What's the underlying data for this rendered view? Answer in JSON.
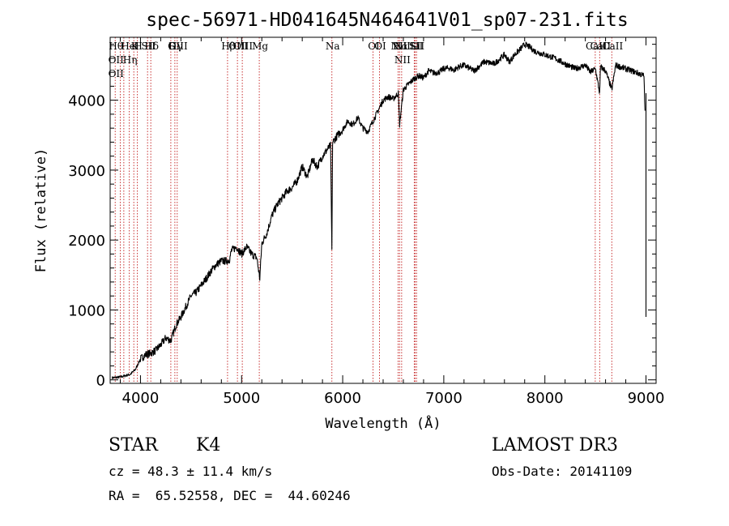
{
  "chart_data": {
    "type": "line",
    "title": "spec-56971-HD041645N464641V01_sp07-231.fits",
    "xlabel": "Wavelength (Å)",
    "ylabel": "Flux (relative)",
    "xlim": [
      3700,
      9100
    ],
    "ylim": [
      -50,
      4900
    ],
    "xticks": [
      4000,
      5000,
      6000,
      7000,
      8000,
      9000
    ],
    "yticks": [
      0,
      1000,
      2000,
      3000,
      4000
    ],
    "colors": {
      "line": "#000000",
      "marker": "#c83232",
      "axes": "#000000"
    },
    "series": [
      {
        "name": "flux",
        "x": [
          3720,
          3800,
          3900,
          3950,
          4000,
          4050,
          4100,
          4150,
          4200,
          4250,
          4300,
          4350,
          4400,
          4450,
          4500,
          4550,
          4600,
          4650,
          4700,
          4750,
          4800,
          4850,
          4880,
          4900,
          4950,
          5000,
          5050,
          5100,
          5150,
          5180,
          5200,
          5250,
          5300,
          5350,
          5400,
          5450,
          5500,
          5550,
          5600,
          5650,
          5700,
          5750,
          5800,
          5850,
          5880,
          5893,
          5900,
          5950,
          6000,
          6050,
          6100,
          6150,
          6200,
          6250,
          6300,
          6350,
          6400,
          6450,
          6500,
          6550,
          6563,
          6600,
          6650,
          6700,
          6750,
          6800,
          6850,
          6900,
          6950,
          7000,
          7050,
          7100,
          7150,
          7200,
          7300,
          7400,
          7500,
          7600,
          7650,
          7700,
          7750,
          7800,
          7850,
          7900,
          8000,
          8100,
          8200,
          8300,
          8400,
          8450,
          8500,
          8542,
          8550,
          8600,
          8662,
          8700,
          8800,
          8900,
          8980,
          8990
        ],
        "y": [
          30,
          40,
          80,
          150,
          300,
          360,
          380,
          420,
          500,
          600,
          560,
          780,
          900,
          1050,
          1200,
          1250,
          1350,
          1450,
          1560,
          1650,
          1700,
          1700,
          1720,
          1850,
          1900,
          1800,
          1900,
          1800,
          1750,
          1450,
          1950,
          2100,
          2350,
          2500,
          2600,
          2700,
          2750,
          2850,
          3050,
          2900,
          3150,
          3050,
          3200,
          3300,
          3350,
          1850,
          3400,
          3500,
          3580,
          3700,
          3650,
          3750,
          3600,
          3550,
          3700,
          3850,
          4000,
          4050,
          4020,
          4100,
          3650,
          4150,
          4230,
          4300,
          4350,
          4320,
          4420,
          4390,
          4400,
          4450,
          4460,
          4430,
          4480,
          4500,
          4420,
          4550,
          4520,
          4650,
          4550,
          4650,
          4720,
          4800,
          4760,
          4700,
          4650,
          4600,
          4520,
          4450,
          4500,
          4400,
          4450,
          4100,
          4480,
          4420,
          4150,
          4500,
          4450,
          4400,
          4350,
          3850
        ]
      }
    ],
    "line_markers": [
      {
        "wavelength": 3750,
        "labels": [
          "Hθ",
          "OII",
          "OII"
        ]
      },
      {
        "wavelength": 3800,
        "labels": []
      },
      {
        "wavelength": 3835,
        "labels": []
      },
      {
        "wavelength": 3889,
        "labels": [
          "HeI",
          "Hη"
        ]
      },
      {
        "wavelength": 3934,
        "labels": [
          "K"
        ]
      },
      {
        "wavelength": 3969,
        "labels": [
          "H"
        ]
      },
      {
        "wavelength": 4070,
        "labels": [
          "SII"
        ]
      },
      {
        "wavelength": 4102,
        "labels": [
          "Hδ"
        ]
      },
      {
        "wavelength": 4300,
        "labels": [
          "G"
        ]
      },
      {
        "wavelength": 4340,
        "labels": [
          "Hγ"
        ]
      },
      {
        "wavelength": 4363,
        "labels": [
          "OIII"
        ]
      },
      {
        "wavelength": 4861,
        "labels": [
          "Hβ"
        ]
      },
      {
        "wavelength": 4959,
        "labels": [
          "OIII"
        ]
      },
      {
        "wavelength": 5007,
        "labels": [
          "OIII"
        ]
      },
      {
        "wavelength": 5175,
        "labels": [
          "Mg"
        ]
      },
      {
        "wavelength": 5893,
        "labels": [
          "Na"
        ]
      },
      {
        "wavelength": 6300,
        "labels": [
          "OI"
        ]
      },
      {
        "wavelength": 6364,
        "labels": [
          "OI"
        ]
      },
      {
        "wavelength": 6548,
        "labels": [
          "NII"
        ]
      },
      {
        "wavelength": 6563,
        "labels": [
          "Hα"
        ]
      },
      {
        "wavelength": 6583,
        "labels": [
          "NII",
          "NII"
        ]
      },
      {
        "wavelength": 6708,
        "labels": [
          "Li"
        ]
      },
      {
        "wavelength": 6717,
        "labels": [
          "SII"
        ]
      },
      {
        "wavelength": 6731,
        "labels": [
          "SII"
        ]
      },
      {
        "wavelength": 8498,
        "labels": [
          "CaII"
        ]
      },
      {
        "wavelength": 8542,
        "labels": [
          "CaII"
        ]
      },
      {
        "wavelength": 8662,
        "labels": [
          "CaII"
        ]
      }
    ]
  },
  "info": {
    "object_class": "STAR",
    "subclass": "K4",
    "survey": "LAMOST DR3",
    "redshift": "cz = 48.3 ± 11.4 km/s",
    "obs_date": "Obs-Date: 20141109",
    "coords": "RA =  65.52558, DEC =  44.60246"
  }
}
